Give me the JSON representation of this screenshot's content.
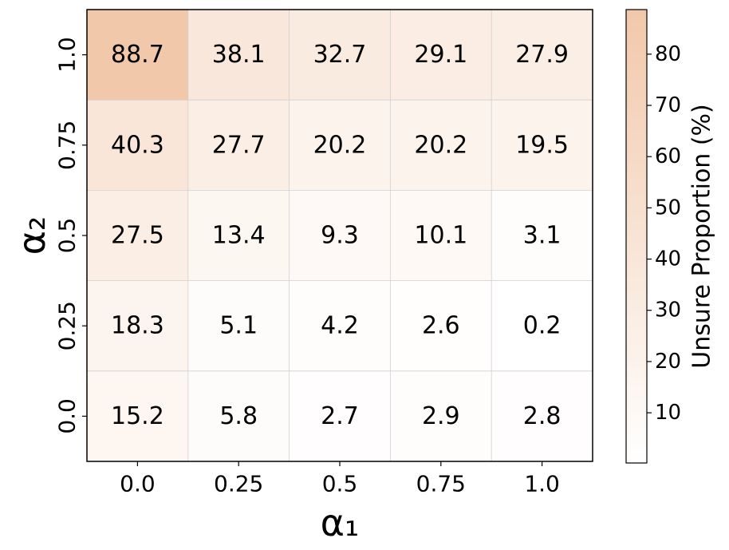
{
  "chart_data": {
    "type": "heatmap",
    "x_label": "α₁",
    "y_label": "α₂",
    "x_categories": [
      "0.0",
      "0.25",
      "0.5",
      "0.75",
      "1.0"
    ],
    "y_categories": [
      "1.0",
      "0.75",
      "0.5",
      "0.25",
      "0.0"
    ],
    "values": [
      [
        88.7,
        38.1,
        32.7,
        29.1,
        27.9
      ],
      [
        40.3,
        27.7,
        20.2,
        20.2,
        19.5
      ],
      [
        27.5,
        13.4,
        9.3,
        10.1,
        3.1
      ],
      [
        18.3,
        5.1,
        4.2,
        2.6,
        0.2
      ],
      [
        15.2,
        5.8,
        2.7,
        2.9,
        2.8
      ]
    ],
    "cmap": [
      "#ffffff",
      "#f2c8aa"
    ],
    "colorbar_label": "Unsure Proportion (%)",
    "clim": [
      0.2,
      88.7
    ],
    "cticks": [
      10,
      20,
      30,
      40,
      50,
      60,
      70,
      80
    ],
    "grid": true
  }
}
